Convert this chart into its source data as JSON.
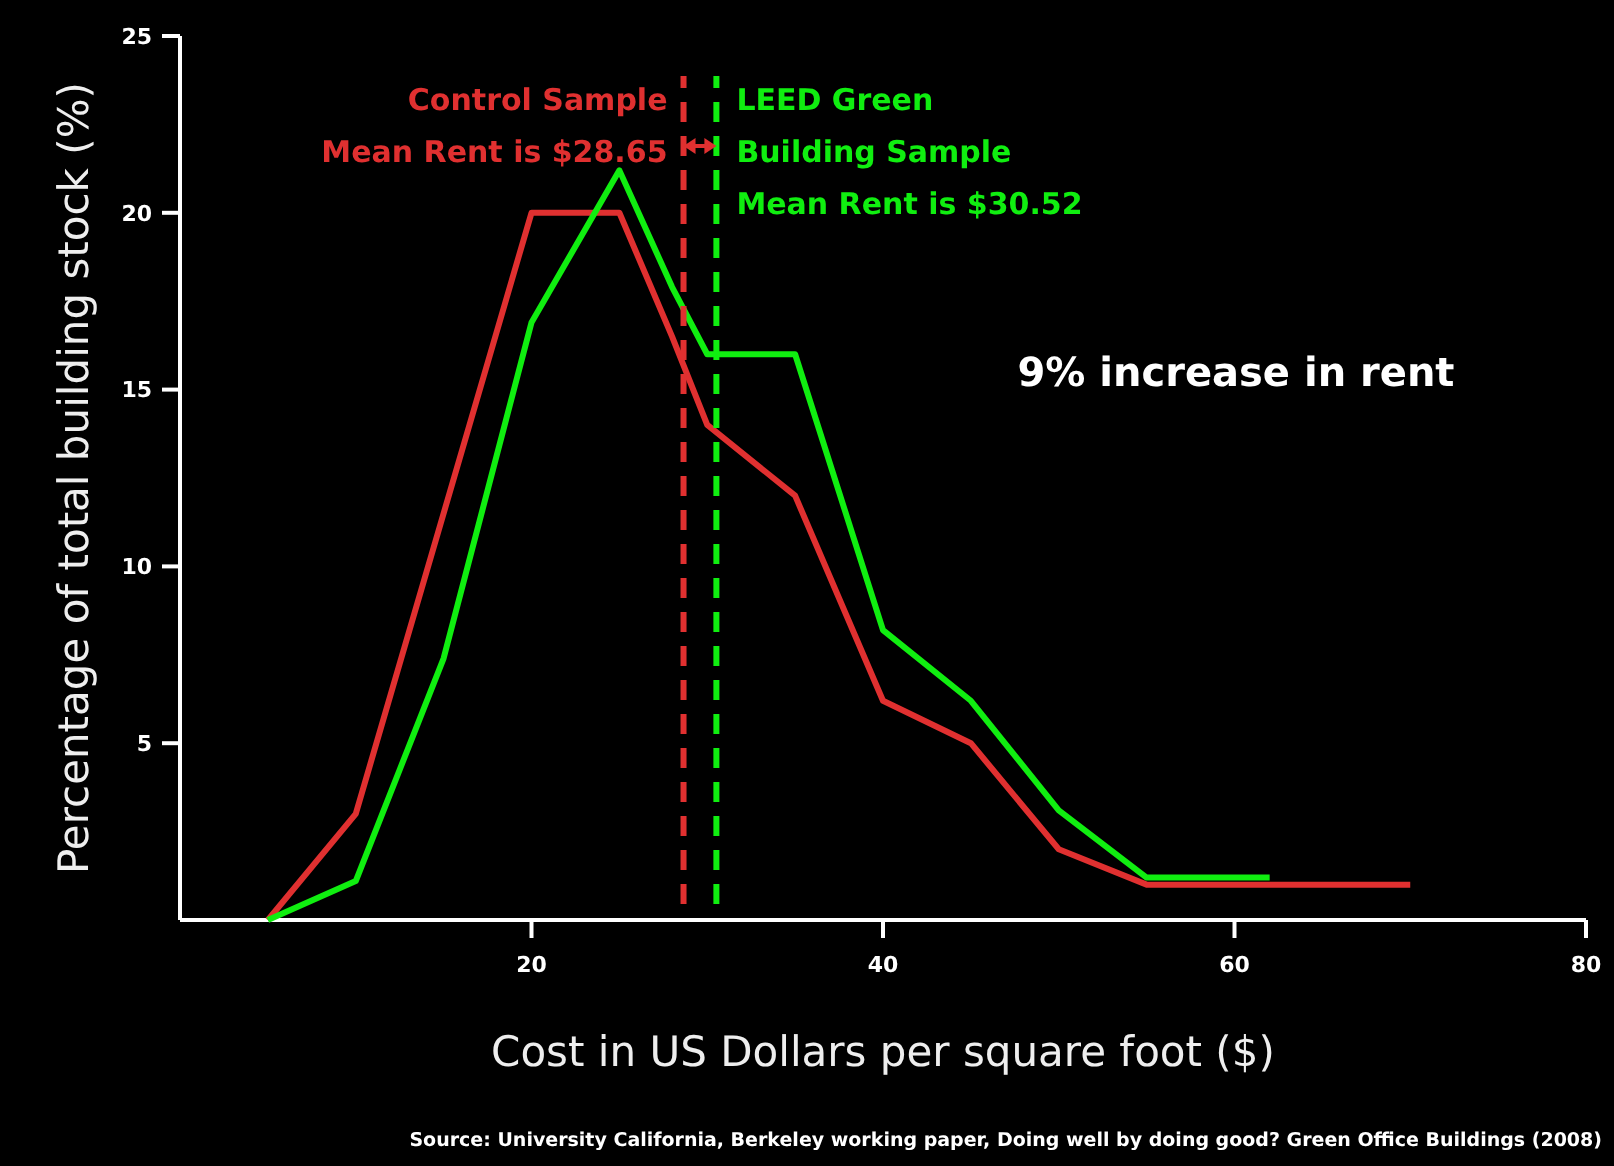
{
  "chart_data": {
    "type": "line",
    "xlabel": "Cost in US Dollars per square foot ($)",
    "ylabel": "Percentage of total building stock (%)",
    "xlim": [
      0,
      80
    ],
    "xticks": [
      20,
      40,
      60,
      80
    ],
    "ylim": [
      0,
      25
    ],
    "yticks": [
      5,
      10,
      15,
      20,
      25
    ],
    "grid": false,
    "line_style": "solid",
    "series": [
      {
        "color": "#e03030",
        "x": [
          5,
          10,
          20,
          25,
          28,
          30,
          35,
          40,
          45,
          50,
          55,
          70
        ],
        "values": [
          0,
          3,
          20,
          20,
          16.5,
          14,
          12,
          6.2,
          5,
          2,
          1,
          1
        ]
      },
      {
        "color": "#10ee10",
        "x": [
          5,
          10,
          15,
          20,
          25,
          28,
          30,
          35,
          40,
          45,
          50,
          55,
          62
        ],
        "values": [
          0,
          1.1,
          7.4,
          16.9,
          21.2,
          17.9,
          16,
          16,
          8.2,
          6.2,
          3.1,
          1.2,
          1.2
        ]
      }
    ],
    "ref_lines": [
      {
        "axis": "x",
        "value": 28.65,
        "label": "Control Sample\nMean Rent is $28.65",
        "color": "#e03030",
        "line_style": "dashed"
      },
      {
        "axis": "x",
        "value": 30.52,
        "label": "LEED Green\nBuilding Sample\nMean Rent is $30.52",
        "color": "#10ee10",
        "line_style": "dashed"
      }
    ],
    "annotations": [
      "9% increase in rent",
      "Source: University California, Berkeley working paper, Doing well by doing good? Green Office Buildings (2008)"
    ]
  }
}
